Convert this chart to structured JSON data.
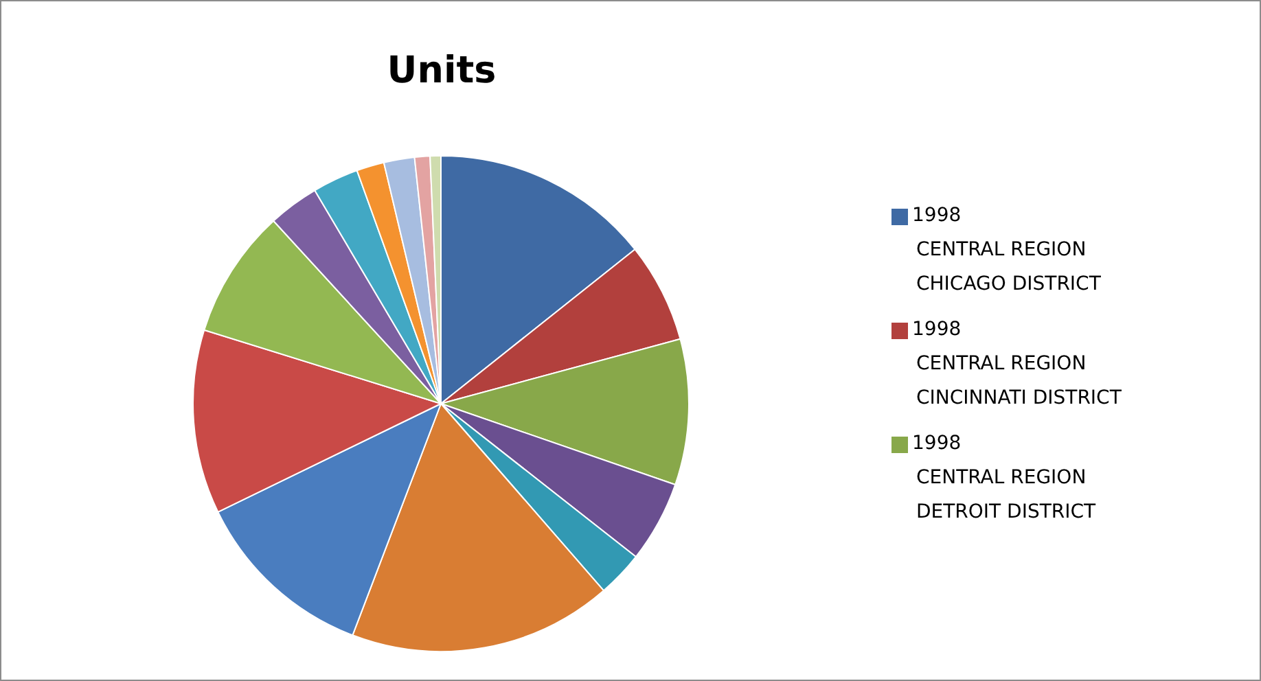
{
  "chart_data": {
    "type": "pie",
    "title": "Units",
    "categories": [
      "1998\nCENTRAL REGION\nCHICAGO DISTRICT",
      "1998\nCENTRAL REGION\nCINCINNATI  DISTRICT",
      "1998\nCENTRAL REGION\nDETROIT DISTRICT",
      null,
      null,
      null,
      null,
      null,
      null,
      null,
      null,
      null,
      null,
      null,
      null
    ],
    "values": [
      14.3,
      6.5,
      9.5,
      5.3,
      3.0,
      17.2,
      12.0,
      12.0,
      8.4,
      3.3,
      3.0,
      1.8,
      2.0,
      1.0,
      0.7
    ],
    "colors": [
      "#3f6aa4",
      "#b2403d",
      "#88a84a",
      "#6a4f90",
      "#3299b3",
      "#d97d33",
      "#4a7dbf",
      "#c94a47",
      "#93b852",
      "#7b5fa0",
      "#42a8c4",
      "#f4922f",
      "#a7bde0",
      "#e3a3a2",
      "#cfdcae"
    ],
    "legend": "right"
  }
}
